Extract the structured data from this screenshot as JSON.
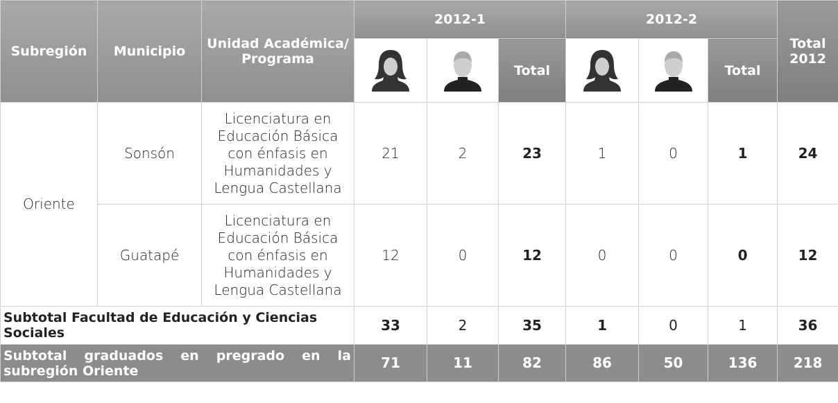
{
  "header": {
    "subregion": "Subregión",
    "municipio": "Municipio",
    "programa": "Unidad Académica/ Programa",
    "periods": [
      "2012-1",
      "2012-2"
    ],
    "total_label": "Total",
    "total_year": "Total 2012"
  },
  "table": {
    "subregion": "Oriente",
    "rows": [
      {
        "municipio": "Sonsón",
        "programa": "Licenciatura en Educación Básica con énfasis en Humanidades y Lengua Castellana",
        "values": [
          21,
          2,
          23,
          1,
          0,
          1,
          24
        ]
      },
      {
        "municipio": "Guatapé",
        "programa": "Licenciatura en Educación Básica con énfasis en Humanidades y Lengua Castellana",
        "values": [
          12,
          0,
          12,
          0,
          0,
          0,
          12
        ]
      }
    ],
    "subtotal": {
      "label": "Subtotal Facultad de Educación y Ciencias Sociales",
      "values": [
        33,
        2,
        35,
        1,
        0,
        1,
        36
      ]
    },
    "total": {
      "label": "Subtotal graduados en pregrado en la subregión Oriente",
      "values": [
        71,
        11,
        82,
        86,
        50,
        136,
        218
      ]
    }
  }
}
